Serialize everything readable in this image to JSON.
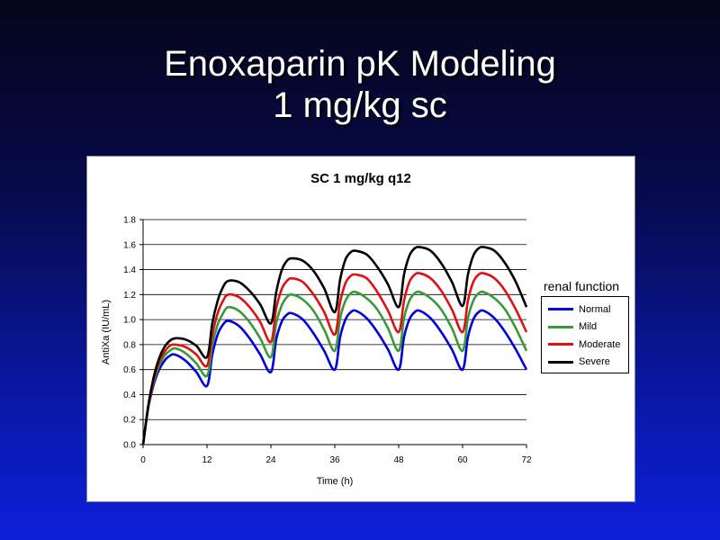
{
  "slide": {
    "title_line1": "Enoxaparin pK Modeling",
    "title_line2": "1 mg/kg sc"
  },
  "chart_data": {
    "type": "line",
    "title": "SC 1 mg/kg q12",
    "xlabel": "Time (h)",
    "ylabel": "AntiXa (IU/mL)",
    "xlim": [
      0,
      72
    ],
    "ylim": [
      0,
      1.8
    ],
    "x_ticks": [
      0,
      12,
      24,
      36,
      48,
      60,
      72
    ],
    "y_ticks": [
      "0.0",
      "0.2",
      "0.4",
      "0.6",
      "0.8",
      "1.0",
      "1.2",
      "1.4",
      "1.6",
      "1.8"
    ],
    "grid": "horizontal",
    "legend_title": "renal function",
    "legend_position": "right",
    "series": [
      {
        "name": "Normal",
        "color": "#0000dd",
        "x": [
          0,
          1,
          2,
          3,
          4,
          5,
          6,
          8,
          10,
          12,
          13,
          14,
          15,
          16,
          18,
          20,
          22,
          24,
          25,
          26,
          27,
          28,
          30,
          32,
          34,
          36,
          37,
          38,
          39,
          40,
          42,
          44,
          46,
          48,
          49,
          50,
          51,
          52,
          54,
          56,
          58,
          60,
          61,
          62,
          63,
          64,
          66,
          68,
          70,
          72
        ],
        "y": [
          0,
          0.3,
          0.48,
          0.6,
          0.67,
          0.71,
          0.72,
          0.67,
          0.58,
          0.47,
          0.72,
          0.88,
          0.96,
          0.99,
          0.95,
          0.85,
          0.72,
          0.58,
          0.84,
          0.98,
          1.04,
          1.05,
          1.0,
          0.89,
          0.75,
          0.6,
          0.86,
          1.0,
          1.06,
          1.07,
          1.01,
          0.9,
          0.76,
          0.6,
          0.86,
          1.0,
          1.06,
          1.07,
          1.01,
          0.9,
          0.76,
          0.6,
          0.86,
          1.0,
          1.06,
          1.07,
          1.01,
          0.9,
          0.76,
          0.6
        ]
      },
      {
        "name": "Mild",
        "color": "#3a9a3a",
        "x": [
          0,
          1,
          2,
          3,
          4,
          5,
          6,
          8,
          10,
          12,
          13,
          14,
          15,
          16,
          18,
          20,
          22,
          24,
          25,
          26,
          27,
          28,
          30,
          32,
          34,
          36,
          37,
          38,
          39,
          40,
          42,
          44,
          46,
          48,
          49,
          50,
          51,
          52,
          54,
          56,
          58,
          60,
          61,
          62,
          63,
          64,
          66,
          68,
          70,
          72
        ],
        "y": [
          0,
          0.31,
          0.5,
          0.63,
          0.71,
          0.75,
          0.77,
          0.73,
          0.65,
          0.55,
          0.8,
          0.96,
          1.05,
          1.1,
          1.07,
          0.98,
          0.85,
          0.7,
          0.97,
          1.11,
          1.18,
          1.2,
          1.16,
          1.07,
          0.92,
          0.75,
          1.01,
          1.15,
          1.21,
          1.22,
          1.17,
          1.08,
          0.93,
          0.75,
          1.01,
          1.15,
          1.21,
          1.22,
          1.17,
          1.08,
          0.93,
          0.75,
          1.01,
          1.15,
          1.21,
          1.22,
          1.17,
          1.08,
          0.93,
          0.75
        ]
      },
      {
        "name": "Moderate",
        "color": "#dd1111",
        "x": [
          0,
          1,
          2,
          3,
          4,
          5,
          6,
          8,
          10,
          12,
          13,
          14,
          15,
          16,
          18,
          20,
          22,
          24,
          25,
          26,
          27,
          28,
          30,
          32,
          34,
          36,
          37,
          38,
          39,
          40,
          42,
          44,
          46,
          48,
          49,
          50,
          51,
          52,
          54,
          56,
          58,
          60,
          61,
          62,
          63,
          64,
          66,
          68,
          70,
          72
        ],
        "y": [
          0,
          0.31,
          0.52,
          0.66,
          0.74,
          0.79,
          0.8,
          0.78,
          0.72,
          0.63,
          0.88,
          1.05,
          1.15,
          1.2,
          1.18,
          1.1,
          0.98,
          0.82,
          1.09,
          1.24,
          1.31,
          1.33,
          1.3,
          1.2,
          1.06,
          0.88,
          1.14,
          1.29,
          1.35,
          1.36,
          1.33,
          1.22,
          1.07,
          0.9,
          1.15,
          1.3,
          1.36,
          1.37,
          1.33,
          1.23,
          1.08,
          0.9,
          1.15,
          1.3,
          1.36,
          1.37,
          1.33,
          1.23,
          1.08,
          0.9
        ]
      },
      {
        "name": "Severe",
        "color": "#000000",
        "x": [
          0,
          1,
          2,
          3,
          4,
          5,
          6,
          8,
          10,
          12,
          13,
          14,
          15,
          16,
          18,
          20,
          22,
          24,
          25,
          26,
          27,
          28,
          30,
          32,
          34,
          36,
          37,
          38,
          39,
          40,
          42,
          44,
          46,
          48,
          49,
          50,
          51,
          52,
          54,
          56,
          58,
          60,
          61,
          62,
          63,
          64,
          66,
          68,
          70,
          72
        ],
        "y": [
          0,
          0.32,
          0.54,
          0.69,
          0.78,
          0.83,
          0.85,
          0.84,
          0.79,
          0.7,
          0.97,
          1.15,
          1.26,
          1.31,
          1.3,
          1.23,
          1.12,
          0.97,
          1.22,
          1.39,
          1.47,
          1.49,
          1.47,
          1.39,
          1.25,
          1.06,
          1.32,
          1.48,
          1.54,
          1.55,
          1.52,
          1.42,
          1.28,
          1.1,
          1.36,
          1.51,
          1.57,
          1.58,
          1.55,
          1.45,
          1.3,
          1.11,
          1.36,
          1.51,
          1.57,
          1.58,
          1.55,
          1.45,
          1.3,
          1.1
        ]
      }
    ]
  }
}
